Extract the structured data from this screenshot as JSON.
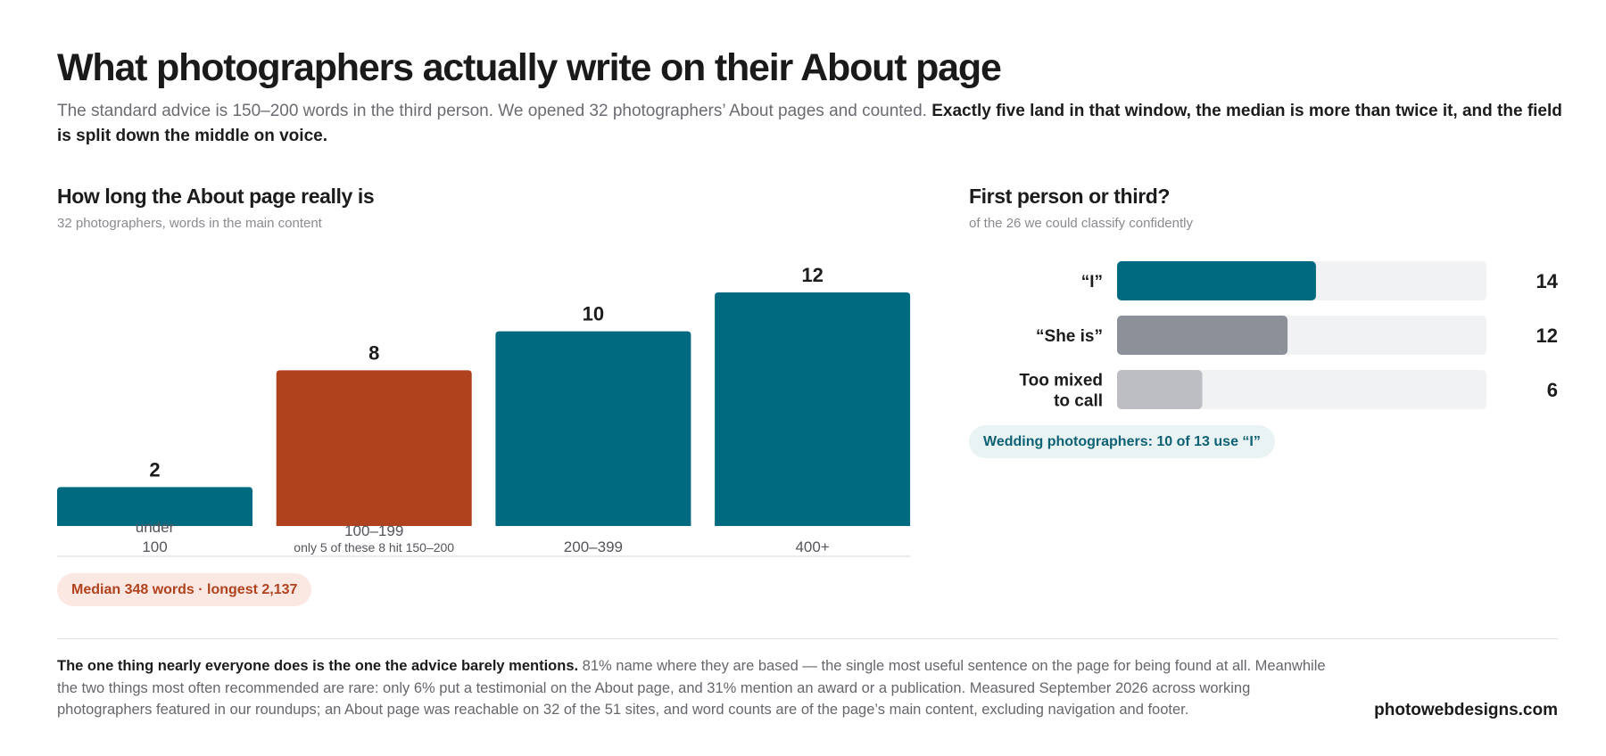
{
  "headline": "What photographers actually write on their About page",
  "dek": {
    "plain": "The standard advice is 150–200 words in the third person. We opened 32 photographers’ About pages and counted. ",
    "bold": "Exactly five land in that window, the median is more than twice it, and the field is split down the middle on voice."
  },
  "left_panel": {
    "title": "How long the About page really is",
    "subtitle": "32 photographers, words in the main content",
    "median_badge": "Median 348 words · longest 2,137"
  },
  "right_panel": {
    "title": "First person or third?",
    "subtitle": "of the 26 we could classify confidently",
    "wedding_badge": "Wedding photographers: 10 of 13 use “I”"
  },
  "chart_data": [
    {
      "type": "bar",
      "title": "How long the About page really is",
      "subtitle": "32 photographers, words in the main content",
      "categories": [
        "under 100",
        "100–199",
        "200–399",
        "400+"
      ],
      "category_lines": [
        [
          "under",
          "100"
        ],
        [
          "100–199"
        ],
        [
          "200–399"
        ],
        [
          "400+"
        ]
      ],
      "values": [
        2,
        8,
        10,
        12
      ],
      "value_labels": [
        "2",
        "8",
        "10",
        "12"
      ],
      "highlight_index": 1,
      "annotations": [
        "",
        "only 5 of these 8 hit 150–200",
        "",
        ""
      ],
      "colors": {
        "bar": "#006a80",
        "highlight": "#b0421e",
        "axis": "#d9d9dc"
      },
      "grid": false
    },
    {
      "type": "bar",
      "orientation": "horizontal",
      "title": "First person or third?",
      "subtitle": "of the 26 we could classify confidently",
      "categories": [
        "“I”",
        "“She is”",
        "Too mixed to call"
      ],
      "category_lines": [
        [
          "“I”"
        ],
        [
          "“She is”"
        ],
        [
          "Too mixed",
          "to call"
        ]
      ],
      "values": [
        14,
        12,
        6
      ],
      "value_labels": [
        "14",
        "12",
        "6"
      ],
      "scale_max": 26,
      "colors": {
        "bars": [
          "#006a80",
          "#8c9099",
          "#bdbec3"
        ],
        "track": "#f1f2f3"
      },
      "grid": false
    }
  ],
  "footnote": {
    "bold": "The one thing nearly everyone does is the one the advice barely mentions.",
    "text": " 81% name where they are based — the single most useful sentence on the page for being found at all. Meanwhile the two things most often recommended are rare: only 6% put a testimonial on the About page, and 31% mention an award or a publication. Measured September 2026 across working photographers featured in our roundups; an About page was reachable on 32 of the 51 sites, and word counts are of the page’s main content, excluding navigation and footer."
  },
  "brand": "photowebdesigns.com"
}
